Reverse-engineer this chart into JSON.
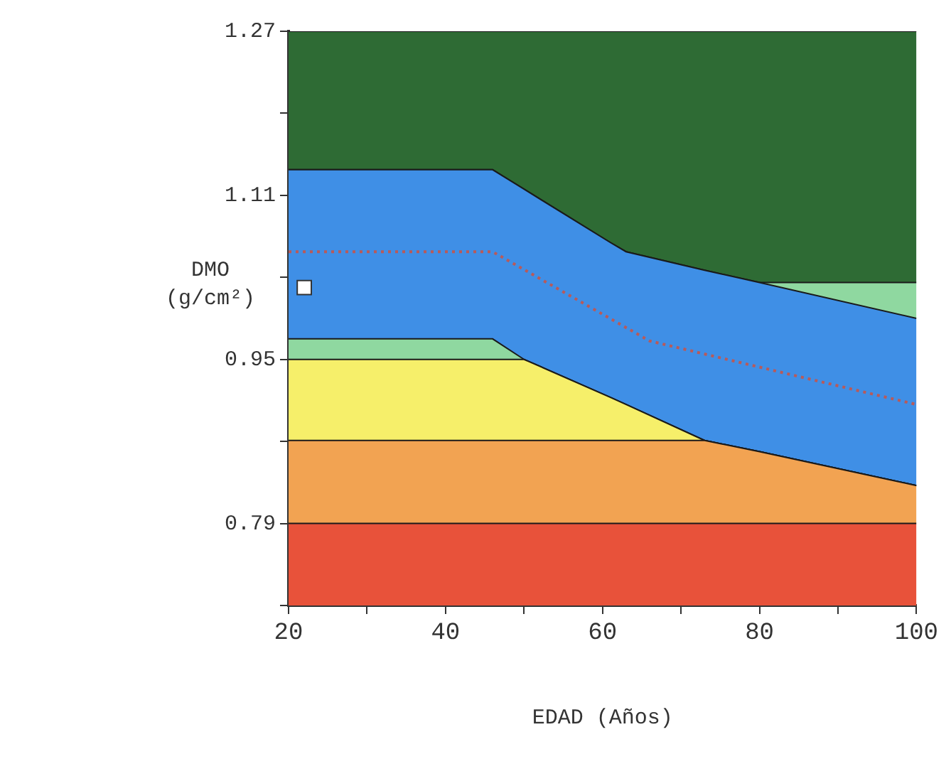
{
  "chart_data": {
    "type": "area",
    "xlabel": "EDAD (Años)",
    "ylabel": "DMO (g/cm²)",
    "x": [
      20,
      46,
      50,
      61,
      63,
      73,
      80,
      100
    ],
    "xlim": [
      20,
      100
    ],
    "xticks": [
      20,
      {
        "value": 30,
        "label": null
      },
      40,
      {
        "value": 50,
        "label": null
      },
      60,
      {
        "value": 70,
        "label": null
      },
      80,
      {
        "value": 90,
        "label": null
      },
      100
    ],
    "ylim": [
      0.71,
      1.27
    ],
    "yticks": [
      {
        "value": 0.71,
        "label": null
      },
      0.79,
      {
        "value": 0.87,
        "label": null
      },
      0.95,
      {
        "value": 1.03,
        "label": null
      },
      1.11,
      {
        "value": 1.19,
        "label": null
      },
      1.27
    ],
    "grid": false,
    "legend": false,
    "series": [
      {
        "color": "#e8523a",
        "values": [
          0.79,
          0.79,
          0.79,
          0.79,
          0.79,
          0.79,
          0.79,
          0.79
        ]
      },
      {
        "color": "#f2a352",
        "values": [
          0.871,
          0.871,
          0.871,
          0.871,
          0.871,
          0.871,
          0.86,
          0.827
        ]
      },
      {
        "color": "#f6ef6a",
        "values": [
          0.95,
          0.95,
          0.95,
          0.913,
          0.906,
          0.871,
          0.86,
          0.827
        ]
      },
      {
        "color": "#8fd8a0",
        "values": [
          0.97,
          0.97,
          0.95,
          0.913,
          0.906,
          0.871,
          0.86,
          0.827
        ]
      },
      {
        "color": "#3f8fe6",
        "values": [
          1.135,
          1.135,
          1.116,
          1.064,
          1.055,
          1.037,
          1.025,
          0.99
        ]
      },
      {
        "color": "#8fd8a0",
        "values": [
          1.135,
          1.135,
          1.116,
          1.064,
          1.055,
          1.037,
          1.025,
          1.025
        ]
      },
      {
        "color": "#2e6b34",
        "values": [
          1.27,
          1.27,
          1.27,
          1.27,
          1.27,
          1.27,
          1.27,
          1.27
        ]
      },
      {
        "type": "line",
        "color": "#b85a5a",
        "line_style": "dotted",
        "marker": "none",
        "x": [
          20,
          46,
          66,
          100
        ],
        "values": [
          1.055,
          1.055,
          0.968,
          0.906
        ]
      },
      {
        "type": "scatter",
        "color": "#ffffff",
        "marker": "square",
        "x": [
          22
        ],
        "values": [
          1.02
        ]
      }
    ]
  }
}
